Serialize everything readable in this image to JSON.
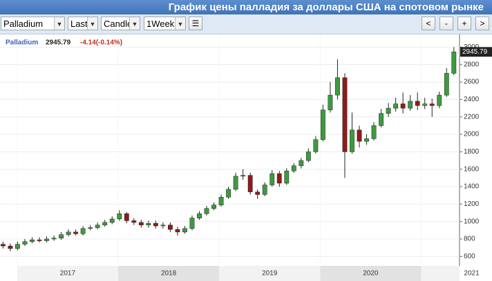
{
  "header": {
    "title": "График цены палладия за доллары США на спотовом рынке"
  },
  "toolbar": {
    "symbol": "Palladium",
    "price_type": "Last",
    "chart_type": "Candle",
    "period": "1Week",
    "nav": [
      "<",
      "-",
      "+",
      ">"
    ]
  },
  "chart_data": {
    "type": "candlestick",
    "legend_symbol": "Palladium",
    "last_price": 2945.79,
    "change": "-4.14(-0.14%)",
    "x": [
      2016.86,
      2016.932,
      2017.004,
      2017.076,
      2017.148,
      2017.22,
      2017.292,
      2017.364,
      2017.436,
      2017.508,
      2017.58,
      2017.652,
      2017.724,
      2017.796,
      2017.868,
      2017.94,
      2018.012,
      2018.084,
      2018.156,
      2018.228,
      2018.3,
      2018.372,
      2018.444,
      2018.516,
      2018.588,
      2018.66,
      2018.732,
      2018.804,
      2018.876,
      2018.948,
      2019.02,
      2019.092,
      2019.164,
      2019.236,
      2019.308,
      2019.38,
      2019.452,
      2019.524,
      2019.596,
      2019.668,
      2019.74,
      2019.812,
      2019.884,
      2019.956,
      2020.028,
      2020.1,
      2020.172,
      2020.244,
      2020.316,
      2020.388,
      2020.46,
      2020.532,
      2020.604,
      2020.676,
      2020.748,
      2020.82,
      2020.892,
      2020.964,
      2021.036,
      2021.108,
      2021.18,
      2021.252,
      2021.324
    ],
    "open": [
      740,
      720,
      690,
      740,
      770,
      790,
      780,
      800,
      810,
      850,
      880,
      860,
      920,
      930,
      960,
      990,
      1030,
      1090,
      1010,
      990,
      960,
      980,
      950,
      960,
      910,
      880,
      920,
      1040,
      1090,
      1150,
      1190,
      1280,
      1370,
      1520,
      1530,
      1340,
      1310,
      1420,
      1550,
      1440,
      1580,
      1640,
      1700,
      1800,
      1940,
      2280,
      2450,
      2650,
      1800,
      2050,
      1920,
      1950,
      2100,
      2240,
      2300,
      2350,
      2300,
      2380,
      2330,
      2350,
      2330,
      2450,
      2700
    ],
    "high": [
      770,
      750,
      770,
      800,
      820,
      820,
      830,
      840,
      880,
      910,
      910,
      950,
      960,
      990,
      1020,
      1060,
      1130,
      1110,
      1040,
      1020,
      1010,
      1010,
      990,
      990,
      940,
      950,
      1070,
      1120,
      1180,
      1220,
      1310,
      1400,
      1560,
      1600,
      1560,
      1370,
      1450,
      1590,
      1580,
      1610,
      1670,
      1730,
      1840,
      1980,
      2340,
      2600,
      2860,
      2700,
      2250,
      2100,
      2000,
      2140,
      2290,
      2360,
      2420,
      2480,
      2450,
      2480,
      2420,
      2410,
      2490,
      2760,
      3000
    ],
    "low": [
      690,
      660,
      670,
      720,
      750,
      760,
      760,
      780,
      790,
      830,
      840,
      840,
      900,
      910,
      940,
      970,
      1010,
      980,
      960,
      930,
      930,
      920,
      920,
      880,
      840,
      860,
      900,
      1020,
      1070,
      1130,
      1170,
      1260,
      1350,
      1480,
      1310,
      1260,
      1290,
      1400,
      1400,
      1420,
      1560,
      1610,
      1680,
      1780,
      1920,
      2250,
      2400,
      1500,
      1780,
      1850,
      1880,
      1930,
      2080,
      2200,
      2260,
      2240,
      2270,
      2280,
      2290,
      2200,
      2300,
      2430,
      2680
    ],
    "close": [
      720,
      690,
      740,
      770,
      790,
      780,
      800,
      810,
      850,
      880,
      860,
      920,
      930,
      960,
      990,
      1030,
      1090,
      1010,
      990,
      960,
      980,
      950,
      960,
      910,
      880,
      920,
      1040,
      1090,
      1150,
      1190,
      1280,
      1370,
      1520,
      1530,
      1340,
      1310,
      1420,
      1550,
      1440,
      1580,
      1640,
      1700,
      1800,
      1940,
      2280,
      2450,
      2650,
      1800,
      2050,
      1920,
      1950,
      2100,
      2240,
      2300,
      2350,
      2300,
      2380,
      2330,
      2350,
      2330,
      2450,
      2700,
      2945.79
    ],
    "up_color": "#3f9a3f",
    "down_color": "#8e1b1b",
    "xlim": [
      2016.83,
      2021.38
    ],
    "xticks": [
      {
        "value": 2017.5,
        "label": "2017"
      },
      {
        "value": 2018.5,
        "label": "2018"
      },
      {
        "value": 2019.5,
        "label": "2019"
      },
      {
        "value": 2020.5,
        "label": "2020"
      },
      {
        "value": 2021.5,
        "label": "2021"
      }
    ],
    "ylim": [
      500,
      3130
    ],
    "yticks": [
      600,
      800,
      1000,
      1200,
      1400,
      1600,
      1800,
      2000,
      2200,
      2400,
      2600,
      2800,
      3000
    ],
    "grid": true
  }
}
